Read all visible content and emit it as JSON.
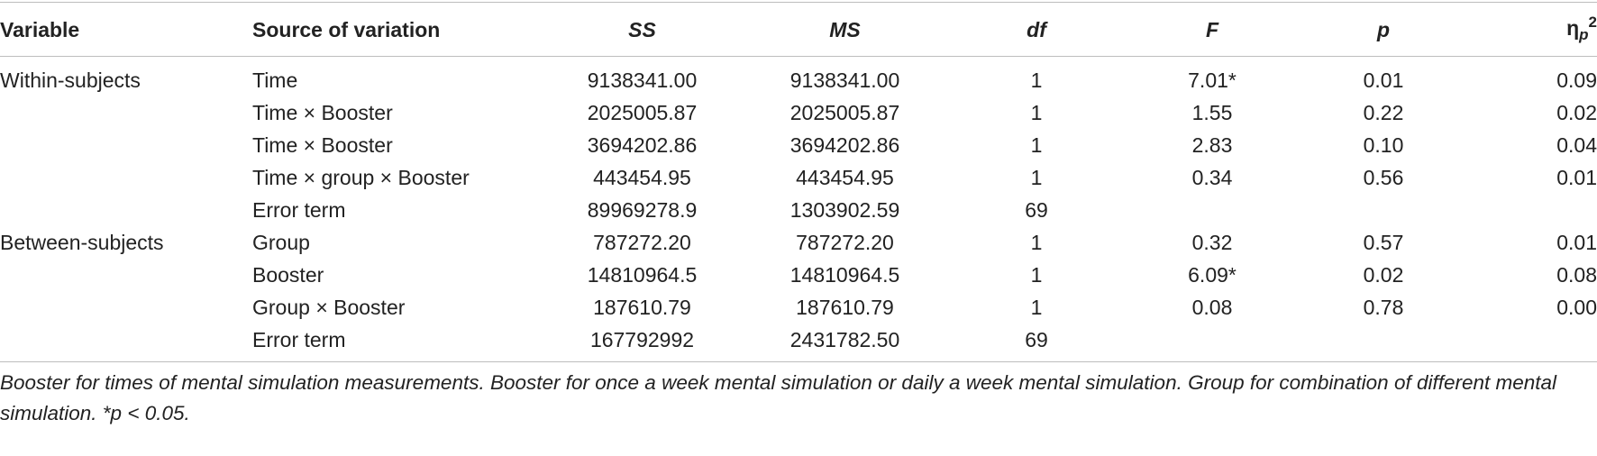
{
  "table": {
    "headers": {
      "variable": "Variable",
      "source": "Source of variation",
      "ss": "SS",
      "ms": "MS",
      "df": "df",
      "f": "F",
      "p": "p",
      "eta_symbol": "η",
      "eta_sub": "p",
      "eta_sup": "2"
    },
    "rows": [
      {
        "variable": "Within-subjects",
        "source": "Time",
        "ss": "9138341.00",
        "ms": "9138341.00",
        "df": "1",
        "f": "7.01*",
        "p": "0.01",
        "eta": "0.09"
      },
      {
        "variable": "",
        "source": "Time × Booster",
        "ss": "2025005.87",
        "ms": "2025005.87",
        "df": "1",
        "f": "1.55",
        "p": "0.22",
        "eta": "0.02"
      },
      {
        "variable": "",
        "source": "Time × Booster",
        "ss": "3694202.86",
        "ms": "3694202.86",
        "df": "1",
        "f": "2.83",
        "p": "0.10",
        "eta": "0.04"
      },
      {
        "variable": "",
        "source": "Time × group × Booster",
        "ss": "443454.95",
        "ms": "443454.95",
        "df": "1",
        "f": "0.34",
        "p": "0.56",
        "eta": "0.01"
      },
      {
        "variable": "",
        "source": "Error term",
        "ss": "89969278.9",
        "ms": "1303902.59",
        "df": "69",
        "f": "",
        "p": "",
        "eta": ""
      },
      {
        "variable": "Between-subjects",
        "source": "Group",
        "ss": "787272.20",
        "ms": "787272.20",
        "df": "1",
        "f": "0.32",
        "p": "0.57",
        "eta": "0.01"
      },
      {
        "variable": "",
        "source": "Booster",
        "ss": "14810964.5",
        "ms": "14810964.5",
        "df": "1",
        "f": "6.09*",
        "p": "0.02",
        "eta": "0.08"
      },
      {
        "variable": "",
        "source": "Group × Booster",
        "ss": "187610.79",
        "ms": "187610.79",
        "df": "1",
        "f": "0.08",
        "p": "0.78",
        "eta": "0.00"
      },
      {
        "variable": "",
        "source": "Error term",
        "ss": "167792992",
        "ms": "2431782.50",
        "df": "69",
        "f": "",
        "p": "",
        "eta": ""
      }
    ]
  },
  "footnote": "Booster for times of mental simulation measurements. Booster for once a week mental simulation or daily a week mental simulation. Group for combination of different mental simulation. *p < 0.05."
}
